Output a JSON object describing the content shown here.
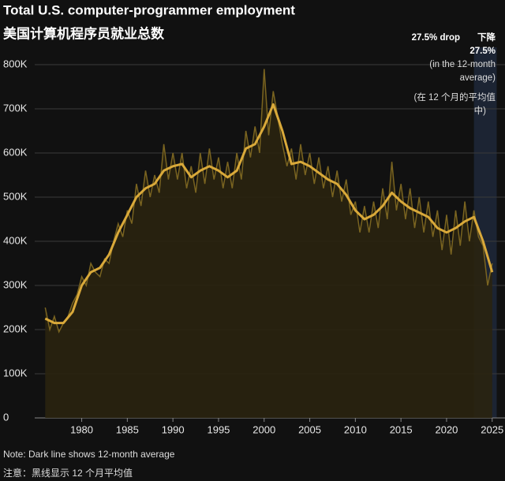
{
  "chart_data": {
    "type": "line",
    "title": "Total U.S. computer-programmer employment",
    "subtitle": "美国计算机程序员就业总数",
    "note": "Note: Dark line shows 12-month average",
    "note_zh": "注意：黑线显示 12 个月平均值",
    "annotation": {
      "text": "27.5% drop",
      "text_zh_1": "下降",
      "text_zh_2": "27.5%",
      "text_2": "(in the 12-month",
      "text_3": "average)",
      "text_zh_3": "(在 12 个月的平均值",
      "text_zh_4": "中)"
    },
    "highlight_xrange": [
      2023,
      2025.5
    ],
    "xlim": [
      1975.8,
      2025.8
    ],
    "xticks": [
      1980,
      1985,
      1990,
      1995,
      2000,
      2005,
      2010,
      2015,
      2020,
      2025
    ],
    "ylim": [
      0,
      800000
    ],
    "yticks": [
      0,
      {
        "value": 100000,
        "label": "100K"
      },
      {
        "value": 200000,
        "label": "200K"
      },
      {
        "value": 300000,
        "label": "300K"
      },
      {
        "value": 400000,
        "label": "400K"
      },
      {
        "value": 500000,
        "label": "500K"
      },
      {
        "value": 600000,
        "label": "600K"
      },
      {
        "value": 700000,
        "label": "700K"
      },
      {
        "value": 800000,
        "label": "800K"
      }
    ],
    "grid": true,
    "series": [
      {
        "color": "#7a6420",
        "area_color": "#2a2410",
        "x": [
          1976,
          1976.5,
          1977,
          1977.5,
          1978,
          1978.5,
          1979,
          1979.5,
          1980,
          1980.5,
          1981,
          1981.5,
          1982,
          1982.5,
          1983,
          1983.5,
          1984,
          1984.5,
          1985,
          1985.5,
          1986,
          1986.5,
          1987,
          1987.5,
          1988,
          1988.5,
          1989,
          1989.5,
          1990,
          1990.5,
          1991,
          1991.5,
          1992,
          1992.5,
          1993,
          1993.5,
          1994,
          1994.5,
          1995,
          1995.5,
          1996,
          1996.5,
          1997,
          1997.5,
          1998,
          1998.5,
          1999,
          1999.5,
          2000,
          2000.5,
          2001,
          2001.5,
          2002,
          2002.5,
          2003,
          2003.5,
          2004,
          2004.5,
          2005,
          2005.5,
          2006,
          2006.5,
          2007,
          2007.5,
          2008,
          2008.5,
          2009,
          2009.5,
          2010,
          2010.5,
          2011,
          2011.5,
          2012,
          2012.5,
          2013,
          2013.5,
          2014,
          2014.5,
          2015,
          2015.5,
          2016,
          2016.5,
          2017,
          2017.5,
          2018,
          2018.5,
          2019,
          2019.5,
          2020,
          2020.5,
          2021,
          2021.5,
          2022,
          2022.5,
          2023,
          2023.5,
          2024,
          2024.5,
          2025
        ],
        "values": [
          250000,
          200000,
          230000,
          195000,
          215000,
          230000,
          260000,
          280000,
          320000,
          300000,
          350000,
          330000,
          320000,
          360000,
          350000,
          400000,
          440000,
          410000,
          470000,
          440000,
          530000,
          480000,
          560000,
          500000,
          550000,
          510000,
          620000,
          540000,
          600000,
          540000,
          600000,
          520000,
          570000,
          510000,
          600000,
          530000,
          610000,
          540000,
          590000,
          520000,
          580000,
          520000,
          600000,
          540000,
          650000,
          590000,
          660000,
          600000,
          790000,
          640000,
          740000,
          680000,
          620000,
          570000,
          610000,
          540000,
          620000,
          550000,
          600000,
          530000,
          590000,
          520000,
          570000,
          500000,
          560000,
          490000,
          540000,
          460000,
          490000,
          420000,
          480000,
          420000,
          490000,
          430000,
          520000,
          450000,
          580000,
          470000,
          530000,
          450000,
          520000,
          430000,
          500000,
          420000,
          490000,
          410000,
          470000,
          380000,
          460000,
          370000,
          470000,
          390000,
          490000,
          400000,
          470000,
          410000,
          390000,
          300000,
          350000
        ]
      },
      {
        "color": "#d9a93a",
        "x": [
          1976,
          1977,
          1978,
          1979,
          1980,
          1981,
          1982,
          1983,
          1984,
          1985,
          1986,
          1987,
          1988,
          1989,
          1990,
          1991,
          1992,
          1993,
          1994,
          1995,
          1996,
          1997,
          1998,
          1999,
          2000,
          2001,
          2002,
          2003,
          2004,
          2005,
          2006,
          2007,
          2008,
          2009,
          2010,
          2011,
          2012,
          2013,
          2014,
          2015,
          2016,
          2017,
          2018,
          2019,
          2020,
          2021,
          2022,
          2023,
          2024,
          2025
        ],
        "values": [
          225000,
          215000,
          215000,
          240000,
          300000,
          330000,
          340000,
          370000,
          420000,
          460000,
          500000,
          520000,
          530000,
          560000,
          570000,
          575000,
          545000,
          560000,
          570000,
          560000,
          545000,
          560000,
          610000,
          620000,
          660000,
          710000,
          650000,
          575000,
          580000,
          570000,
          555000,
          540000,
          530000,
          505000,
          470000,
          450000,
          460000,
          480000,
          510000,
          490000,
          475000,
          465000,
          455000,
          430000,
          420000,
          430000,
          445000,
          455000,
          400000,
          330000
        ]
      }
    ]
  }
}
